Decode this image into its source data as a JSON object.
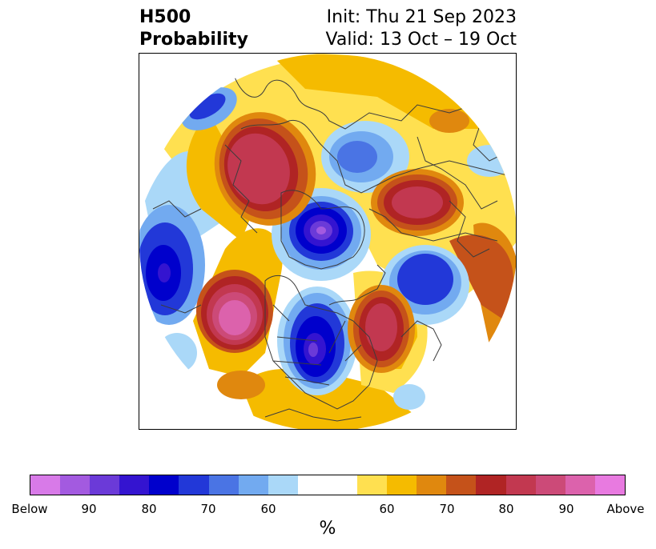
{
  "title": {
    "left_line1": "H500",
    "left_line2": "Probability",
    "right_line1": "Init: Thu 21 Sep 2023",
    "right_line2": "Valid: 13 Oct – 19 Oct"
  },
  "map": {
    "projection": "north-polar-stereographic",
    "boundaries": "coastlines, countries, US states, Canadian provinces",
    "coastline_color": "#3c3c3c",
    "anomalies": [
      {
        "region": "Alaska / Yukon",
        "sign": "above",
        "peak_percent": 80
      },
      {
        "region": "Scandinavia / Northwest Russia",
        "sign": "above",
        "peak_percent": 80
      },
      {
        "region": "North Pacific (south of Aleutians)",
        "sign": "above",
        "peak_percent": 90
      },
      {
        "region": "Eastern Canada / Labrador",
        "sign": "above",
        "peak_percent": 80
      },
      {
        "region": "Siberia / Arctic Ocean",
        "sign": "below",
        "peak_percent": 90
      },
      {
        "region": "Western Pacific / Kamchatka",
        "sign": "below",
        "peak_percent": 80
      },
      {
        "region": "Western / Central US",
        "sign": "below",
        "peak_percent": 80
      },
      {
        "region": "North Atlantic / Greenland Sea",
        "sign": "below",
        "peak_percent": 70
      }
    ]
  },
  "colorbar": {
    "colors": [
      "#d87ae8",
      "#a35ae0",
      "#6b3ad8",
      "#3414d0",
      "#0000cc",
      "#2238d8",
      "#4a74e4",
      "#72aaf0",
      "#aad8f8",
      "#ffffff",
      "#ffffff",
      "#ffe050",
      "#f5bb00",
      "#e0880e",
      "#c5521a",
      "#b02424",
      "#c23850",
      "#cc4a78",
      "#dc62ac",
      "#e87ae0"
    ],
    "tick_labels": [
      "Below",
      "90",
      "80",
      "70",
      "60",
      "60",
      "70",
      "80",
      "90",
      "Above"
    ],
    "unit": "%"
  }
}
